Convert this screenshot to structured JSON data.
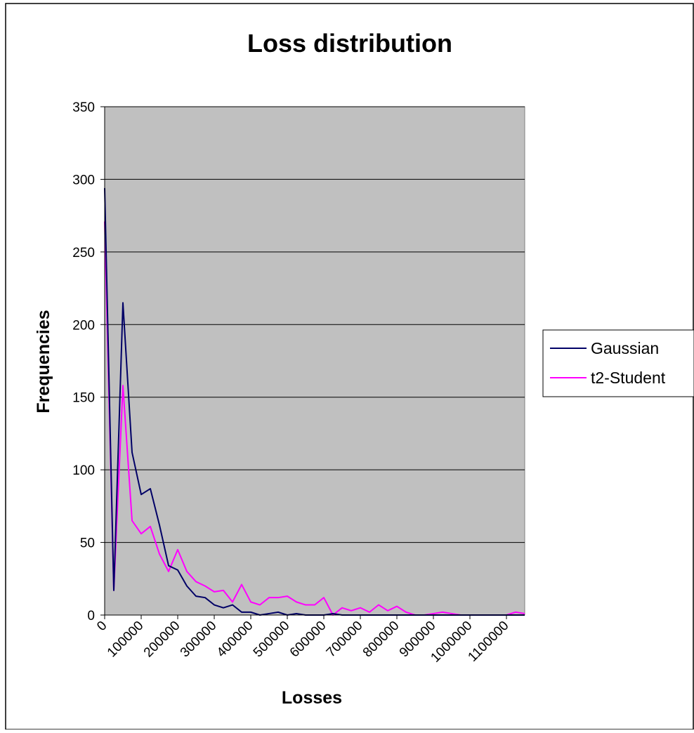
{
  "chart_data": {
    "type": "line",
    "title": "Loss distribution",
    "xlabel": "Losses",
    "ylabel": "Frequencies",
    "x": [
      0,
      25000,
      50000,
      75000,
      100000,
      125000,
      150000,
      175000,
      200000,
      225000,
      250000,
      275000,
      300000,
      325000,
      350000,
      375000,
      400000,
      425000,
      450000,
      475000,
      500000,
      525000,
      550000,
      575000,
      600000,
      625000,
      650000,
      675000,
      700000,
      725000,
      750000,
      775000,
      800000,
      825000,
      850000,
      875000,
      900000,
      925000,
      950000,
      975000,
      1000000,
      1025000,
      1050000,
      1075000,
      1100000,
      1125000,
      1150000
    ],
    "series": [
      {
        "name": "Gaussian",
        "color": "#000066",
        "values": [
          294,
          17,
          215,
          112,
          83,
          87,
          62,
          34,
          31,
          20,
          13,
          12,
          7,
          5,
          7,
          2,
          2,
          0,
          1,
          2,
          0,
          1,
          0,
          0,
          0,
          1,
          0,
          0,
          0,
          0,
          0,
          0,
          0,
          0,
          0,
          0,
          0,
          0,
          0,
          0,
          0,
          0,
          0,
          0,
          0,
          0,
          0
        ]
      },
      {
        "name": "t2-Student",
        "color": "#ff00ff",
        "values": [
          271,
          17,
          158,
          65,
          56,
          61,
          42,
          30,
          45,
          30,
          23,
          20,
          16,
          17,
          9,
          21,
          9,
          7,
          12,
          12,
          13,
          9,
          7,
          7,
          12,
          0,
          5,
          3,
          5,
          2,
          7,
          3,
          6,
          2,
          0,
          0,
          1,
          2,
          1,
          0,
          0,
          0,
          0,
          0,
          0,
          2,
          1
        ]
      }
    ],
    "xlim": [
      0,
      1150000
    ],
    "ylim": [
      0,
      350
    ],
    "yticks": [
      0,
      50,
      100,
      150,
      200,
      250,
      300,
      350
    ],
    "xticks": [
      0,
      100000,
      200000,
      300000,
      400000,
      500000,
      600000,
      700000,
      800000,
      900000,
      1000000,
      1100000
    ],
    "grid": "horizontal",
    "plot_background": "#c0c0c0",
    "legend_position": "right"
  }
}
